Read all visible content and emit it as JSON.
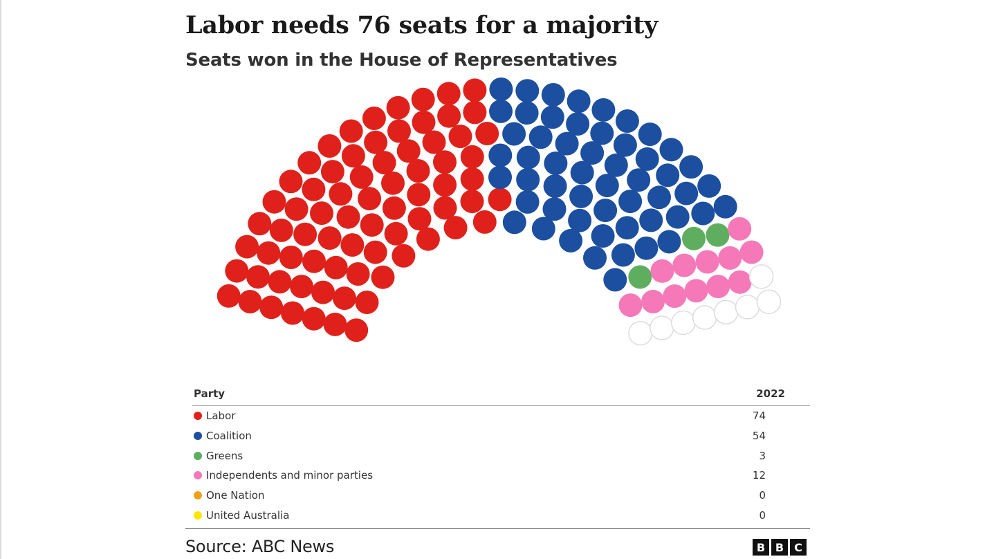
{
  "title": "Labor needs 76 seats for a majority",
  "subtitle": "Seats won in the House of Representatives",
  "chart_data": {
    "type": "parliament",
    "title": "Labor needs 76 seats for a majority",
    "subtitle": "Seats won in the House of Representatives",
    "total_seats": 151,
    "series": [
      {
        "name": "Labor",
        "value": 74,
        "color": "#e0211b"
      },
      {
        "name": "Coalition",
        "value": 54,
        "color": "#1c4f9f"
      },
      {
        "name": "Greens",
        "value": 3,
        "color": "#5fae5f"
      },
      {
        "name": "Independents and minor parties",
        "value": 12,
        "color": "#f579b8"
      },
      {
        "name": "One Nation",
        "value": 0,
        "color": "#f0a11c"
      },
      {
        "name": "United Australia",
        "value": 0,
        "color": "#ffe600"
      }
    ],
    "undeclared_color": "#ffffff"
  },
  "table": {
    "header_party": "Party",
    "header_year": "2022",
    "rows": [
      {
        "party": "Labor",
        "seats": "74",
        "color": "#e0211b"
      },
      {
        "party": "Coalition",
        "seats": "54",
        "color": "#1c4f9f"
      },
      {
        "party": "Greens",
        "seats": "3",
        "color": "#5fae5f"
      },
      {
        "party": "Independents and minor parties",
        "seats": "12",
        "color": "#f579b8"
      },
      {
        "party": "One Nation",
        "seats": "0",
        "color": "#f0a11c"
      },
      {
        "party": "United Australia",
        "seats": "0",
        "color": "#ffe600"
      }
    ]
  },
  "source": "Source: ABC News",
  "logo": [
    "B",
    "B",
    "C"
  ]
}
